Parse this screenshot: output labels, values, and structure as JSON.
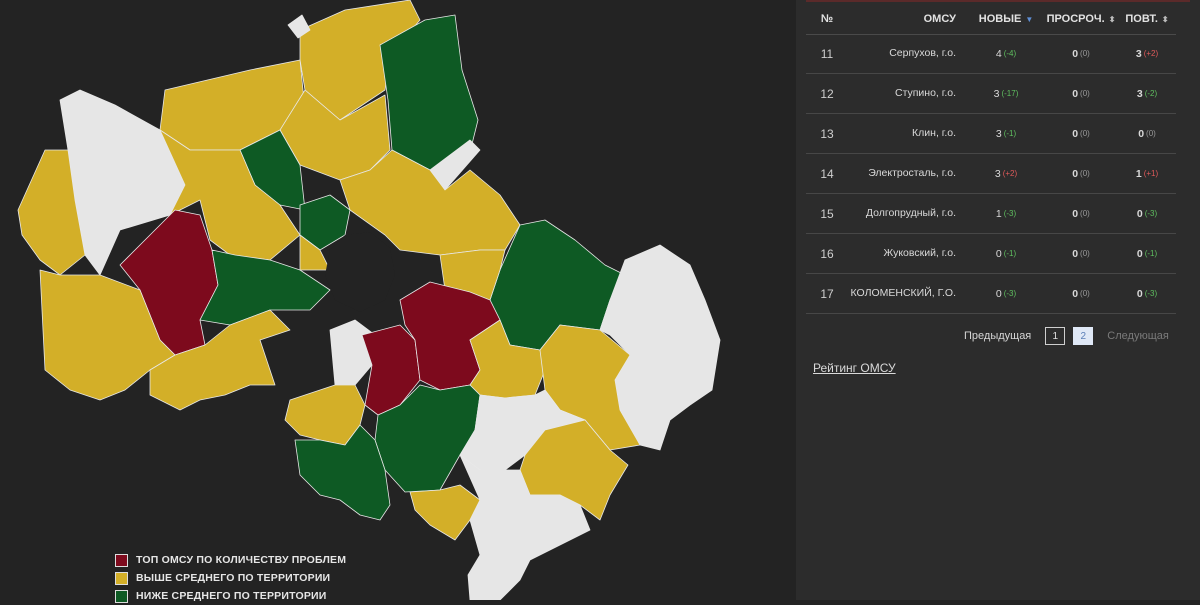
{
  "colors": {
    "top": "#7d0a1d",
    "above": "#d3af28",
    "below": "#0e5a24",
    "none": "#e6e6e6",
    "panel_bg": "#2c2c2c",
    "map_bg": "#232323"
  },
  "legend": [
    {
      "label": "ТОП ОМСУ ПО КОЛИЧЕСТВУ ПРОБЛЕМ",
      "color": "#7d0a1d"
    },
    {
      "label": "ВЫШЕ СРЕДНЕГО ПО ТЕРРИТОРИИ",
      "color": "#d3af28"
    },
    {
      "label": "НИЖЕ СРЕДНЕГО ПО ТЕРРИТОРИИ",
      "color": "#0e5a24"
    }
  ],
  "table": {
    "headers": {
      "num": "№",
      "omsu": "ОМСУ",
      "new": "НОВЫЕ",
      "overdue": "ПРОСРОЧ.",
      "repeat": "ПОВТ."
    },
    "rows": [
      {
        "num": "11",
        "omsu": "Серпухов, г.о.",
        "new": "4",
        "new_delta": "(-4)",
        "overdue": "0",
        "overdue_delta": "(0)",
        "repeat": "3",
        "repeat_delta": "(+2)"
      },
      {
        "num": "12",
        "omsu": "Ступино, г.о.",
        "new": "3",
        "new_delta": "(-17)",
        "overdue": "0",
        "overdue_delta": "(0)",
        "repeat": "3",
        "repeat_delta": "(-2)"
      },
      {
        "num": "13",
        "omsu": "Клин, г.о.",
        "new": "3",
        "new_delta": "(-1)",
        "overdue": "0",
        "overdue_delta": "(0)",
        "repeat": "0",
        "repeat_delta": "(0)"
      },
      {
        "num": "14",
        "omsu": "Электросталь, г.о.",
        "new": "3",
        "new_delta": "(+2)",
        "overdue": "0",
        "overdue_delta": "(0)",
        "repeat": "1",
        "repeat_delta": "(+1)"
      },
      {
        "num": "15",
        "omsu": "Долгопрудный, г.о.",
        "new": "1",
        "new_delta": "(-3)",
        "overdue": "0",
        "overdue_delta": "(0)",
        "repeat": "0",
        "repeat_delta": "(-3)"
      },
      {
        "num": "16",
        "omsu": "Жуковский, г.о.",
        "new": "0",
        "new_delta": "(-1)",
        "overdue": "0",
        "overdue_delta": "(0)",
        "repeat": "0",
        "repeat_delta": "(-1)"
      },
      {
        "num": "17",
        "omsu": "КОЛОМЕНСКИЙ, Г.О.",
        "new": "0",
        "new_delta": "(-3)",
        "overdue": "0",
        "overdue_delta": "(0)",
        "repeat": "0",
        "repeat_delta": "(-3)"
      }
    ]
  },
  "pagination": {
    "prev": "Предыдущая",
    "pages": [
      "1",
      "2"
    ],
    "current": "2",
    "next": "Следующая"
  },
  "rating_link": "Рейтинг ОМСУ"
}
